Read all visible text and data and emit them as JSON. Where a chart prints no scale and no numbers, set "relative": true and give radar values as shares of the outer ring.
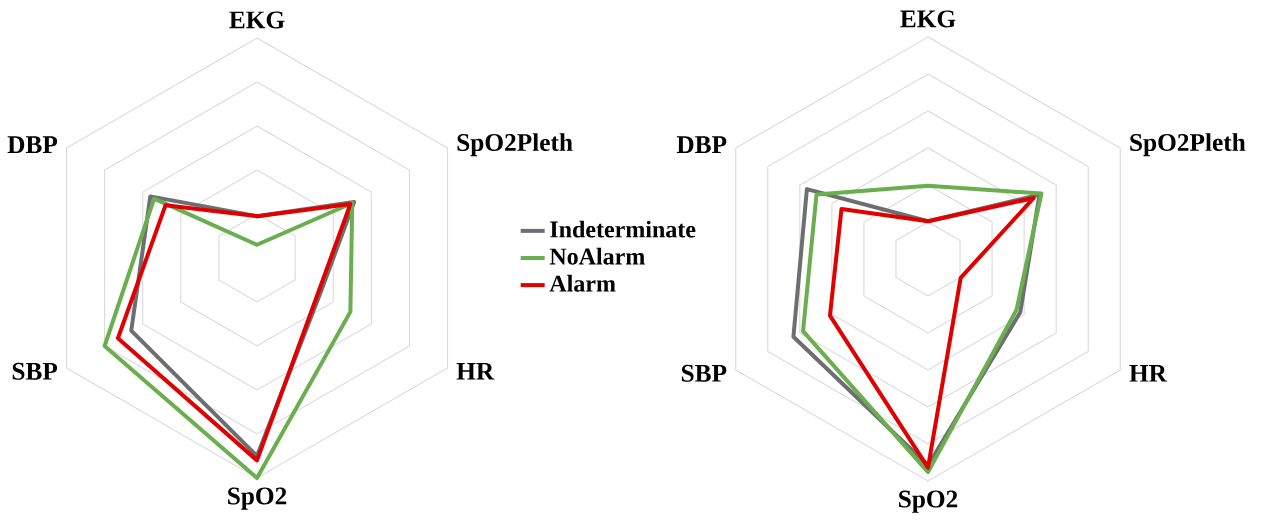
{
  "chart_data": [
    {
      "type": "radar",
      "relative": true,
      "grid": true,
      "legend": "right",
      "categories": [
        "EKG",
        "SpO2Pleth",
        "HR",
        "SpO2",
        "SBP",
        "DBP"
      ],
      "series": [
        {
          "name": "Indeterminate",
          "color": "#6d6e71",
          "values": [
            0.19,
            0.51,
            0.33,
            0.9,
            0.66,
            0.56
          ]
        },
        {
          "name": "NoAlarm",
          "color": "#6aae4f",
          "values": [
            0.06,
            0.5,
            0.49,
            1.0,
            0.8,
            0.54
          ]
        },
        {
          "name": "Alarm",
          "color": "#e00000",
          "values": [
            0.19,
            0.49,
            0.32,
            0.92,
            0.73,
            0.48
          ]
        }
      ]
    },
    {
      "type": "radar",
      "relative": true,
      "grid": true,
      "categories": [
        "EKG",
        "SpO2Pleth",
        "HR",
        "SpO2",
        "SBP",
        "DBP"
      ],
      "series": [
        {
          "color": "#6d6e71",
          "values": [
            0.17,
            0.58,
            0.48,
            0.93,
            0.7,
            0.63
          ]
        },
        {
          "color": "#6aae4f",
          "values": [
            0.33,
            0.59,
            0.46,
            0.96,
            0.65,
            0.58
          ]
        },
        {
          "color": "#e00000",
          "values": [
            0.17,
            0.55,
            0.17,
            0.94,
            0.51,
            0.45
          ]
        }
      ]
    }
  ]
}
